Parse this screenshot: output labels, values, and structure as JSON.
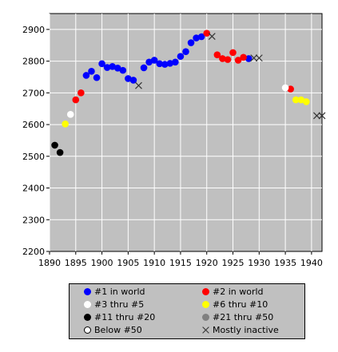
{
  "chart_data": {
    "type": "scatter",
    "title": "",
    "xlabel": "",
    "ylabel": "",
    "xlim": [
      1890,
      1942
    ],
    "ylim": [
      2200,
      2950
    ],
    "xticks": [
      1890,
      1895,
      1900,
      1905,
      1910,
      1915,
      1920,
      1925,
      1930,
      1935,
      1940
    ],
    "yticks": [
      2200,
      2300,
      2400,
      2500,
      2600,
      2700,
      2800,
      2900
    ],
    "grid": true,
    "legend_position": "bottom",
    "series": [
      {
        "name": "#1 in world",
        "color": "#0000ff",
        "marker": "dot",
        "points": [
          [
            1897,
            2755
          ],
          [
            1898,
            2768
          ],
          [
            1899,
            2748
          ],
          [
            1900,
            2792
          ],
          [
            1901,
            2780
          ],
          [
            1902,
            2783
          ],
          [
            1903,
            2778
          ],
          [
            1904,
            2771
          ],
          [
            1905,
            2745
          ],
          [
            1906,
            2740
          ],
          [
            1908,
            2779
          ],
          [
            1909,
            2797
          ],
          [
            1910,
            2803
          ],
          [
            1911,
            2792
          ],
          [
            1912,
            2790
          ],
          [
            1913,
            2793
          ],
          [
            1914,
            2797
          ],
          [
            1915,
            2815
          ],
          [
            1916,
            2830
          ],
          [
            1917,
            2858
          ],
          [
            1918,
            2873
          ],
          [
            1919,
            2877
          ],
          [
            1928,
            2808
          ]
        ]
      },
      {
        "name": "#2 in world",
        "color": "#ff0000",
        "marker": "dot",
        "points": [
          [
            1895,
            2678
          ],
          [
            1896,
            2700
          ],
          [
            1920,
            2888
          ],
          [
            1922,
            2820
          ],
          [
            1923,
            2808
          ],
          [
            1924,
            2805
          ],
          [
            1925,
            2827
          ],
          [
            1926,
            2803
          ],
          [
            1927,
            2812
          ],
          [
            1936,
            2712
          ]
        ]
      },
      {
        "name": "#3 thru #5",
        "color": "#ffffff",
        "marker": "dot",
        "points": [
          [
            1894,
            2632
          ],
          [
            1935,
            2716
          ]
        ]
      },
      {
        "name": "#6 thru #10",
        "color": "#ffff00",
        "marker": "dot",
        "points": [
          [
            1893,
            2602
          ],
          [
            1937,
            2678
          ],
          [
            1938,
            2678
          ],
          [
            1939,
            2672
          ]
        ]
      },
      {
        "name": "#11 thru #20",
        "color": "#000000",
        "marker": "dot",
        "points": [
          [
            1891,
            2535
          ],
          [
            1892,
            2512
          ]
        ]
      },
      {
        "name": "#21 thru #50",
        "color": "#808080",
        "marker": "dot",
        "points": []
      },
      {
        "name": "Below #50",
        "color": "#ffffff",
        "marker": "ring",
        "points": []
      },
      {
        "name": "Mostly inactive",
        "color": "#333333",
        "marker": "cross",
        "points": [
          [
            1907,
            2723
          ],
          [
            1921,
            2878
          ],
          [
            1929,
            2810
          ],
          [
            1930,
            2810
          ],
          [
            1941,
            2628
          ],
          [
            1942,
            2628
          ]
        ]
      }
    ]
  }
}
